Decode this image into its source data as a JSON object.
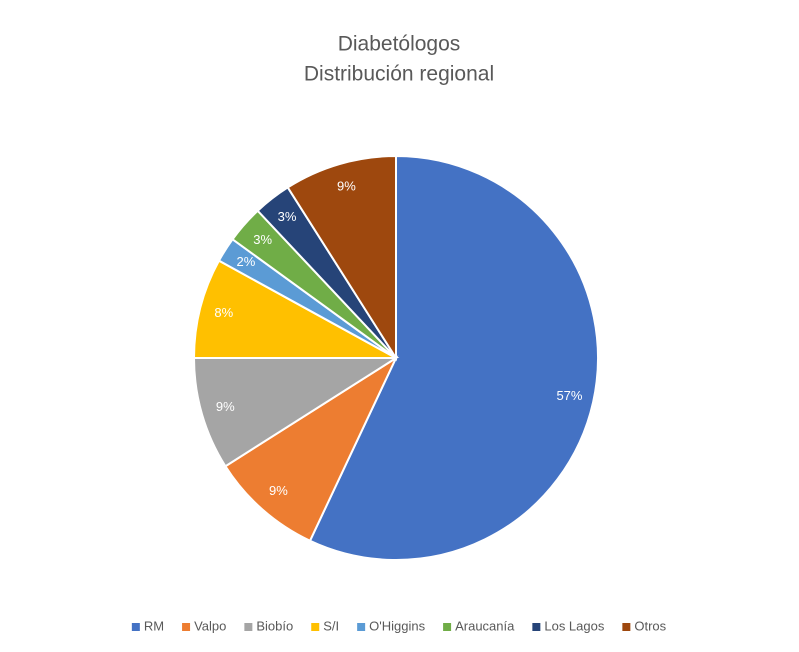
{
  "chart_data": {
    "type": "pie",
    "title": "Diabetólogos",
    "subtitle": "Distribución regional",
    "categories": [
      "RM",
      "Valpo",
      "Biobío",
      "S/I",
      "O'Higgins",
      "Araucanía",
      "Los Lagos",
      "Otros"
    ],
    "values": [
      57,
      9,
      9,
      8,
      2,
      3,
      3,
      9
    ],
    "value_labels": [
      "57%",
      "9%",
      "9%",
      "8%",
      "2%",
      "3%",
      "3%",
      "9%"
    ],
    "colors": [
      "#4472c4",
      "#ed7d31",
      "#a5a5a5",
      "#ffc000",
      "#5b9bd5",
      "#70ad47",
      "#264478",
      "#9e480e"
    ],
    "legend": "bottom"
  }
}
